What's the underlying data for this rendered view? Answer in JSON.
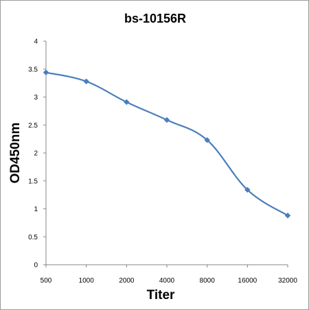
{
  "chart_data": {
    "type": "line",
    "title": "bs-10156R",
    "xlabel": "Titer",
    "ylabel": "OD450nm",
    "categories": [
      "500",
      "1000",
      "2000",
      "4000",
      "8000",
      "16000",
      "32000"
    ],
    "series": [
      {
        "values": [
          3.44,
          3.28,
          2.91,
          2.59,
          2.23,
          1.34,
          0.88
        ],
        "color": "#4a7ebb"
      }
    ],
    "ylim": [
      0,
      4
    ],
    "yticks": [
      "0",
      "0.5",
      "1",
      "1.5",
      "2",
      "2.5",
      "3",
      "3.5",
      "4"
    ],
    "grid": false,
    "legend": "none",
    "smooth": true,
    "marker": "diamond"
  }
}
